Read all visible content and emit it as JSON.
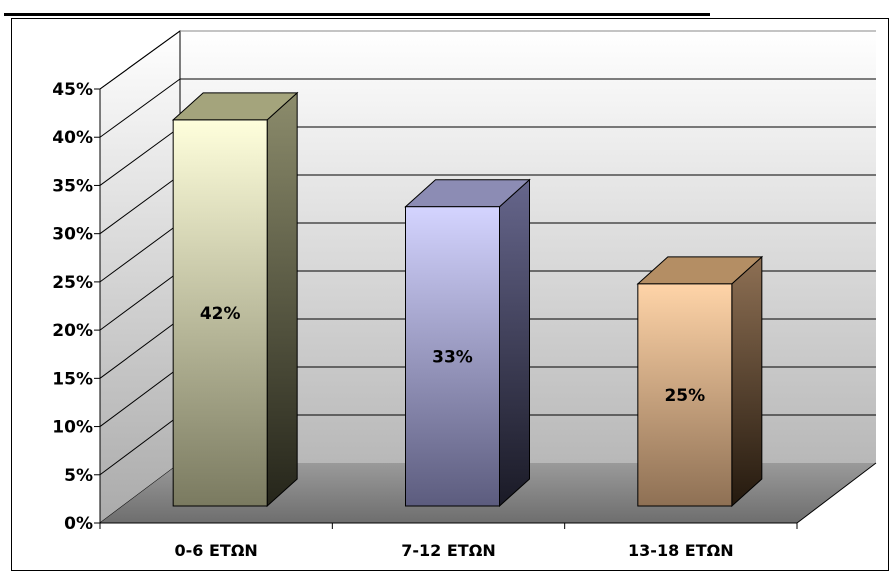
{
  "chart_data": {
    "type": "bar",
    "title": "",
    "xlabel": "",
    "ylabel": "",
    "categories": [
      "0-6 ΕΤΩΝ",
      "7-12 ΕΤΩΝ",
      "13-18 ΕΤΩΝ"
    ],
    "values": [
      42,
      33,
      25
    ],
    "data_labels": [
      "42%",
      "33%",
      "25%"
    ],
    "ylim": [
      0,
      45
    ],
    "y_ticks": [
      0,
      5,
      10,
      15,
      20,
      25,
      30,
      35,
      40,
      45
    ],
    "y_tick_labels": [
      "0%",
      "5%",
      "10%",
      "15%",
      "20%",
      "25%",
      "30%",
      "35%",
      "40%",
      "45%"
    ],
    "grid": true,
    "legend": "none",
    "style": "3d-column",
    "colors": {
      "bars": [
        {
          "front_top": "#ffffdc",
          "front_bottom": "#7a7a60",
          "side_top": "#8c8c6c",
          "side_bottom": "#25251a",
          "top": "#a4a47c"
        },
        {
          "front_top": "#d4d4ff",
          "front_bottom": "#5c5c7e",
          "side_top": "#66668c",
          "side_bottom": "#1a1a26",
          "top": "#8c8cb4"
        },
        {
          "front_top": "#ffd4a8",
          "front_bottom": "#8e7054",
          "side_top": "#8e7054",
          "side_bottom": "#24190e",
          "top": "#b48e64"
        }
      ],
      "back_wall_top": "#ffffff",
      "back_wall_bottom": "#b8b8b8",
      "side_wall_top": "#ffffff",
      "side_wall_bottom": "#aaaaaa",
      "floor_near": "#6e6e6e",
      "floor_far": "#9a9a9a",
      "grid_line": "#000000"
    }
  }
}
